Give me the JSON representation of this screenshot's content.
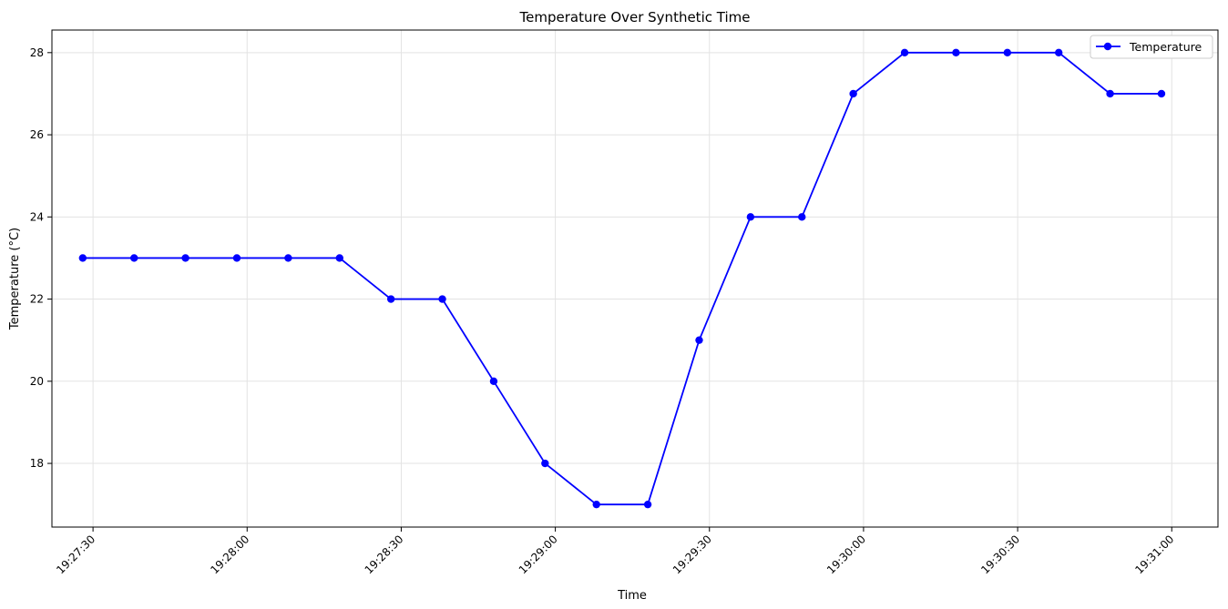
{
  "chart_data": {
    "type": "line",
    "title": "Temperature Over Synthetic Time",
    "xlabel": "Time",
    "ylabel": "Temperature (°C)",
    "x_ticks": [
      "19:27:30",
      "19:28:00",
      "19:28:30",
      "19:29:00",
      "19:29:30",
      "19:30:00",
      "19:30:30",
      "19:31:00"
    ],
    "y_ticks": [
      18,
      20,
      22,
      24,
      26,
      28
    ],
    "ylim": [
      16.45,
      28.55
    ],
    "xlim": [
      "19:27:22",
      "19:31:09"
    ],
    "grid": true,
    "legend_position": "top-right",
    "series": [
      {
        "name": "Temperature",
        "color": "#0000ff",
        "marker": "circle",
        "x": [
          "19:27:28",
          "19:27:38",
          "19:27:48",
          "19:27:58",
          "19:28:08",
          "19:28:18",
          "19:28:28",
          "19:28:38",
          "19:28:48",
          "19:28:58",
          "19:29:08",
          "19:29:18",
          "19:29:28",
          "19:29:38",
          "19:29:48",
          "19:29:58",
          "19:30:08",
          "19:30:18",
          "19:30:28",
          "19:30:38",
          "19:30:48",
          "19:30:58"
        ],
        "values": [
          23,
          23,
          23,
          23,
          23,
          23,
          22,
          22,
          20,
          18,
          17,
          17,
          21,
          24,
          24,
          27,
          28,
          28,
          28,
          28,
          27,
          27
        ]
      }
    ]
  }
}
